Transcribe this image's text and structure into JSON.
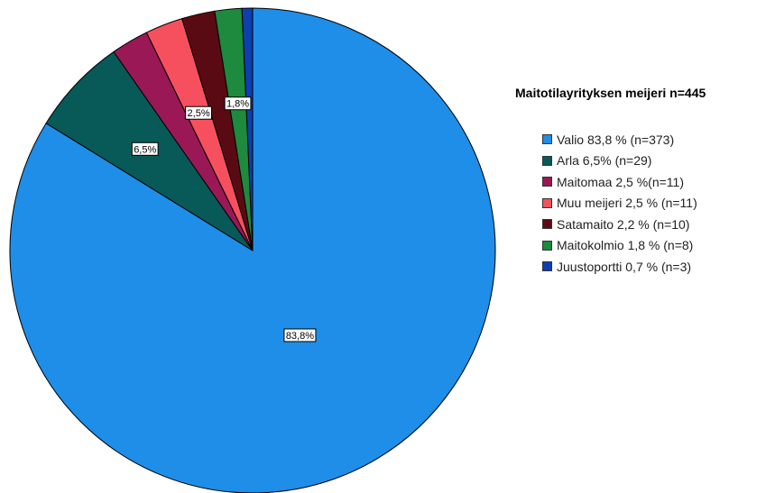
{
  "chart_data": {
    "type": "pie",
    "title": "Maitotilayrityksen meijeri n=445",
    "slices": [
      {
        "name": "Valio",
        "legend": "Valio 83,8 % (n=373)",
        "value": 83.8,
        "n": 373,
        "label": "83,8%",
        "color": "#1E8EE8"
      },
      {
        "name": "Arla",
        "legend": "Arla 6,5% (n=29)",
        "value": 6.5,
        "n": 29,
        "label": "6,5%",
        "color": "#075A57"
      },
      {
        "name": "Maitomaa",
        "legend": "Maitomaa 2,5 %(n=11)",
        "value": 2.5,
        "n": 11,
        "label": "",
        "color": "#9A1855"
      },
      {
        "name": "Muu meijeri",
        "legend": "Muu meijeri 2,5 % (n=11)",
        "value": 2.5,
        "n": 11,
        "label": "2,5%",
        "color": "#F6505E"
      },
      {
        "name": "Satamaito",
        "legend": "Satamaito 2,2 % (n=10)",
        "value": 2.2,
        "n": 10,
        "label": "",
        "color": "#5A0A12"
      },
      {
        "name": "Maitokolmio",
        "legend": "Maitokolmio 1,8 % (n=8)",
        "value": 1.8,
        "n": 8,
        "label": "1,8%",
        "color": "#1D8A3E"
      },
      {
        "name": "Juustoportti",
        "legend": "Juustoportti 0,7 % (n=3)",
        "value": 0.7,
        "n": 3,
        "label": "",
        "color": "#0D3FB0"
      }
    ],
    "legend_position": "right"
  }
}
